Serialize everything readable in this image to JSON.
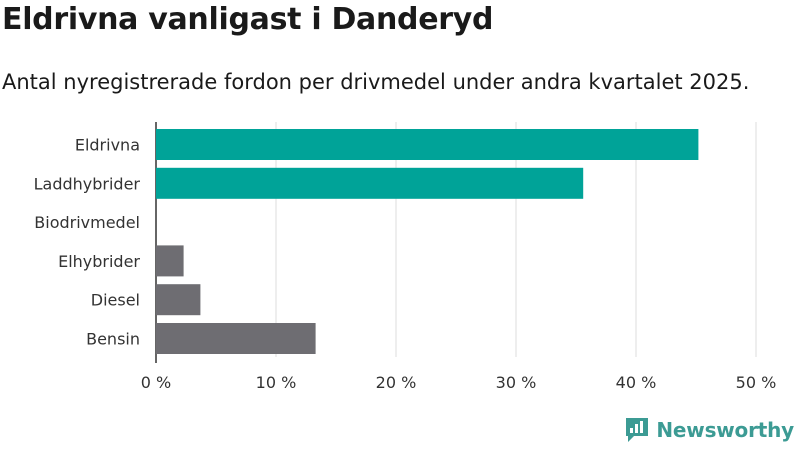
{
  "title": "Eldrivna vanligast i Danderyd",
  "subtitle": "Antal nyregistrerade fordon per drivmedel under andra kvartalet 2025.",
  "brand": {
    "name": "Newsworthy",
    "icon": "newsworthy-logo-icon"
  },
  "colors": {
    "highlight": "#00a398",
    "neutral": "#6e6d72",
    "grid": "#dddddd",
    "axis": "#333333",
    "brand": "#3c9b94"
  },
  "chart_data": {
    "type": "bar",
    "orientation": "horizontal",
    "categories": [
      "Eldrivna",
      "Laddhybrider",
      "Biodrivmedel",
      "Elhybrider",
      "Diesel",
      "Bensin"
    ],
    "values": [
      45.2,
      35.6,
      0,
      2.3,
      3.7,
      13.3
    ],
    "bar_colors": [
      "#00a398",
      "#00a398",
      "#00a398",
      "#6e6d72",
      "#6e6d72",
      "#6e6d72"
    ],
    "xlim": [
      0,
      50
    ],
    "xticks": [
      0,
      10,
      20,
      30,
      40,
      50
    ],
    "xtick_labels": [
      "0 %",
      "10 %",
      "20 %",
      "30 %",
      "40 %",
      "50 %"
    ],
    "grid": true,
    "title": "Eldrivna vanligast i Danderyd",
    "xlabel": "",
    "ylabel": ""
  }
}
